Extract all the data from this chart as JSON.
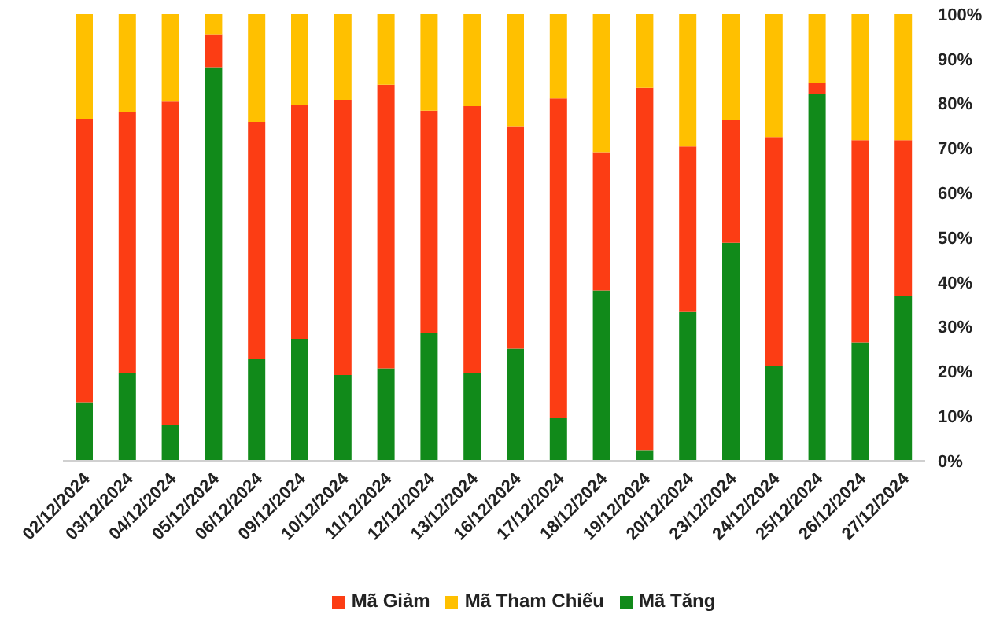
{
  "chart_data": {
    "type": "bar",
    "stacked": true,
    "categories": [
      "02/12/2024",
      "03/12/2024",
      "04/12/2024",
      "05/12/2024",
      "06/12/2024",
      "09/12/2024",
      "10/12/2024",
      "11/12/2024",
      "12/12/2024",
      "13/12/2024",
      "16/12/2024",
      "17/12/2024",
      "18/12/2024",
      "19/12/2024",
      "20/12/2024",
      "23/12/2024",
      "24/12/2024",
      "25/12/2024",
      "26/12/2024",
      "27/12/2024"
    ],
    "series": [
      {
        "name": "Mã Tăng",
        "color": "#118a1a",
        "values": [
          13.1,
          19.7,
          8.0,
          88.1,
          22.7,
          27.3,
          19.2,
          20.7,
          28.5,
          19.6,
          25.1,
          9.6,
          38.1,
          2.4,
          33.3,
          48.8,
          21.3,
          82.1,
          26.5,
          36.8
        ]
      },
      {
        "name": "Mã Giảm",
        "color": "#fc3d14",
        "values": [
          63.5,
          58.3,
          72.4,
          7.4,
          53.2,
          52.4,
          61.6,
          63.5,
          49.9,
          59.8,
          49.8,
          71.5,
          31.0,
          81.1,
          37.1,
          27.5,
          51.2,
          2.6,
          45.3,
          35.0
        ]
      },
      {
        "name": "Mã Tham Chiếu",
        "color": "#ffc000",
        "values": [
          23.4,
          22.0,
          19.6,
          4.5,
          24.1,
          20.3,
          19.2,
          15.8,
          21.6,
          20.6,
          25.1,
          18.9,
          30.9,
          16.5,
          29.6,
          23.7,
          27.5,
          15.3,
          28.2,
          28.2
        ]
      }
    ],
    "ylim": [
      0,
      100
    ],
    "yticks": [
      {
        "value": 0,
        "label": "0%"
      },
      {
        "value": 10,
        "label": "10%"
      },
      {
        "value": 20,
        "label": "20%"
      },
      {
        "value": 30,
        "label": "30%"
      },
      {
        "value": 40,
        "label": "40%"
      },
      {
        "value": 50,
        "label": "50%"
      },
      {
        "value": 60,
        "label": "60%"
      },
      {
        "value": 70,
        "label": "70%"
      },
      {
        "value": 80,
        "label": "80%"
      },
      {
        "value": 90,
        "label": "90%"
      },
      {
        "value": 100,
        "label": "100%"
      }
    ],
    "grid": false,
    "legend": "bottom"
  }
}
